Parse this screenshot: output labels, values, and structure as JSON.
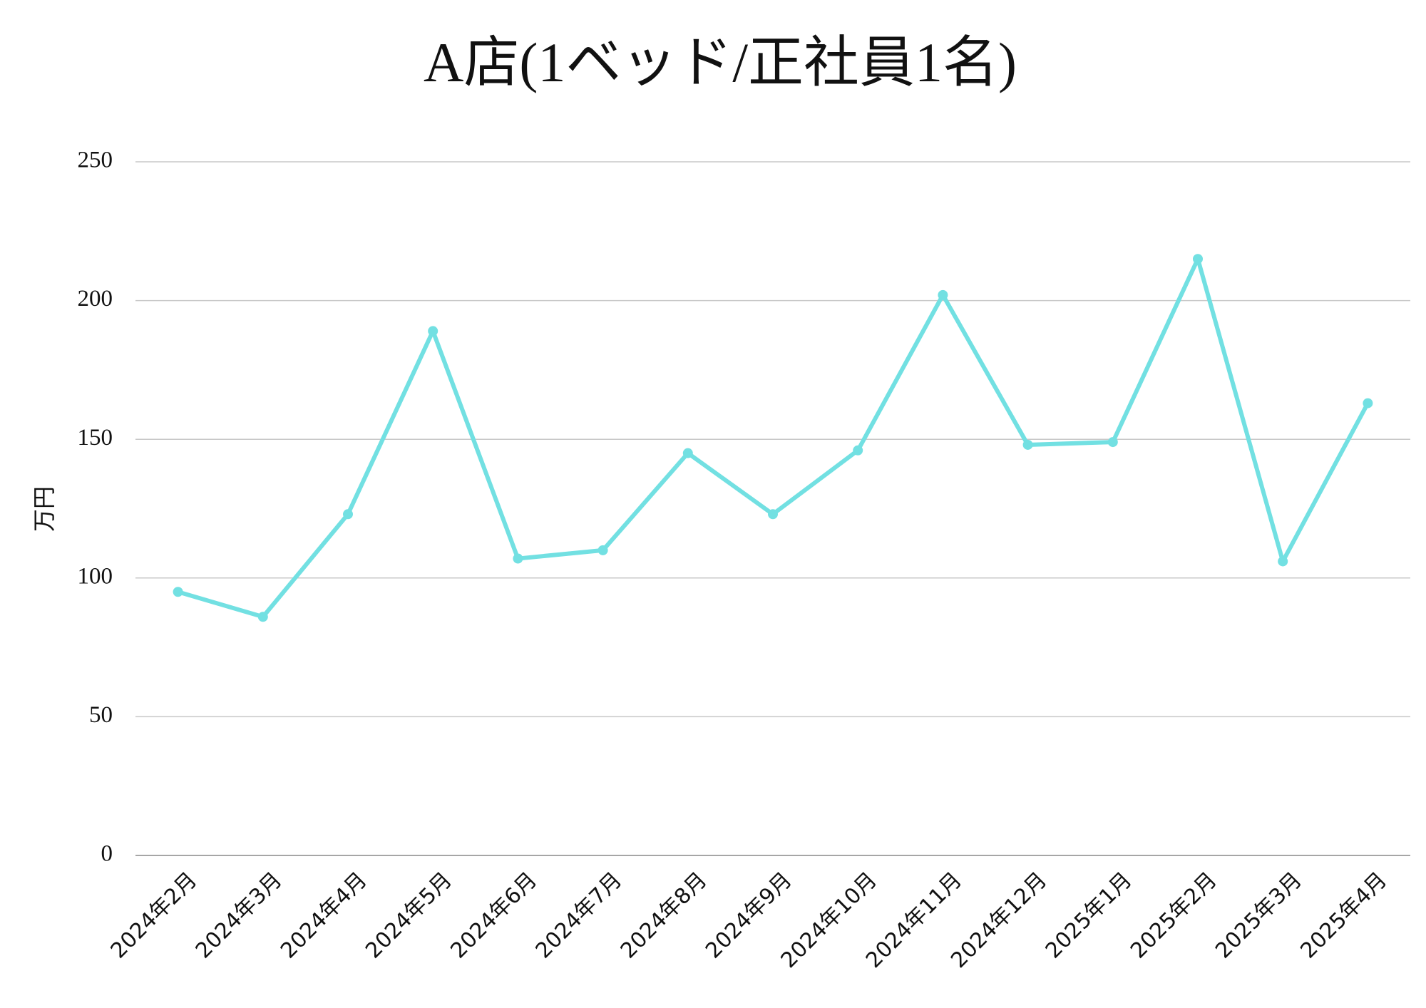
{
  "chart_data": {
    "type": "line",
    "title": "A店(1ベッド/正社員1名)",
    "y_label": "万円",
    "categories": [
      "2024年2月",
      "2024年3月",
      "2024年4月",
      "2024年5月",
      "2024年6月",
      "2024年7月",
      "2024年8月",
      "2024年9月",
      "2024年10月",
      "2024年11月",
      "2024年12月",
      "2025年1月",
      "2025年2月",
      "2025年3月",
      "2025年4月"
    ],
    "series": [
      {
        "name": "A店",
        "color": "#72e0e2",
        "values": [
          95,
          86,
          123,
          189,
          107,
          110,
          145,
          123,
          146,
          202,
          148,
          149,
          215,
          106,
          163
        ]
      }
    ],
    "ylim": [
      0,
      250
    ],
    "yticks": [
      0,
      50,
      100,
      150,
      200,
      250
    ],
    "grid": true
  }
}
